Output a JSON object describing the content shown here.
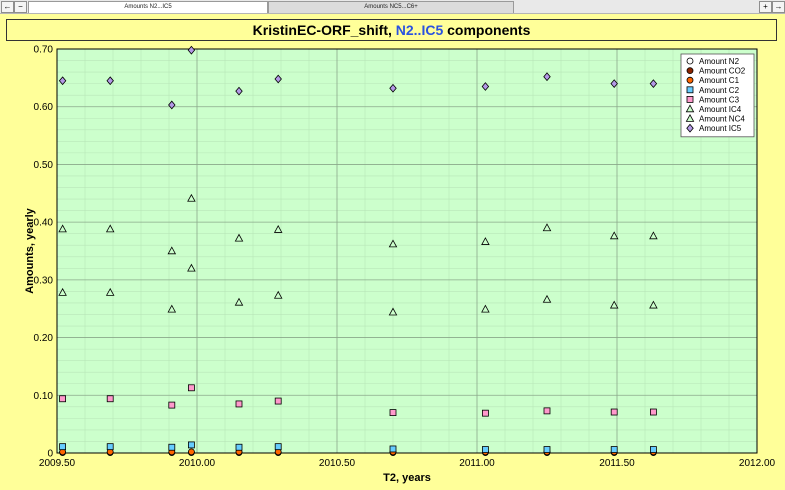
{
  "tabs": {
    "active_label": "Amounts N2...IC5",
    "inactive_label": "Amounts NC5...C6+",
    "nav_left": "←",
    "nav_minus": "−",
    "nav_plus": "+",
    "nav_right": "→"
  },
  "title": {
    "prefix": "KristinEC-ORF_shift, ",
    "highlight": "N2..IC5",
    "suffix": " components"
  },
  "colors": {
    "panel_bg": "#ffff99",
    "plot_bg": "#ccffcc",
    "title_highlight": "#2952e0"
  },
  "chart_data": {
    "type": "scatter",
    "xlabel": "T2, years",
    "ylabel": "Amounts, yearly",
    "xlim": [
      2009.5,
      2012.0
    ],
    "ylim": [
      0.0,
      0.7
    ],
    "x_ticks": [
      "2009.50",
      "2010.00",
      "2010.50",
      "2011.00",
      "2011.50",
      "2012.00"
    ],
    "y_ticks": [
      "0",
      "0.10",
      "0.20",
      "0.30",
      "0.40",
      "0.50",
      "0.60",
      "0.70"
    ],
    "grid": true,
    "legend_position": "top-right",
    "x": [
      2009.52,
      2009.69,
      2009.91,
      2009.98,
      2010.15,
      2010.29,
      2010.7,
      2011.03,
      2011.25,
      2011.49,
      2011.63
    ],
    "series": [
      {
        "name": "Amount N2",
        "marker": "circle",
        "fill": "#ffffff",
        "values": [
          0.001,
          0.001,
          0.001,
          0.001,
          0.001,
          0.001,
          0.001,
          0.001,
          0.001,
          0.001,
          0.001
        ]
      },
      {
        "name": "Amount CO2",
        "marker": "circle",
        "fill": "#8b2500",
        "values": [
          0.001,
          0.001,
          0.001,
          0.001,
          0.001,
          0.001,
          0.001,
          0.001,
          0.001,
          0.001,
          0.001
        ]
      },
      {
        "name": "Amount C1",
        "marker": "circle",
        "fill": "#ff6600",
        "values": [
          0.002,
          0.002,
          0.002,
          0.002,
          0.002,
          0.002,
          0.002,
          0.002,
          0.002,
          0.002,
          0.002
        ]
      },
      {
        "name": "Amount C2",
        "marker": "square",
        "fill": "#66ccff",
        "values": [
          0.011,
          0.011,
          0.01,
          0.014,
          0.01,
          0.011,
          0.007,
          0.006,
          0.006,
          0.006,
          0.006
        ]
      },
      {
        "name": "Amount C3",
        "marker": "square",
        "fill": "#ff99cc",
        "values": [
          0.094,
          0.094,
          0.083,
          0.113,
          0.085,
          0.09,
          0.07,
          0.069,
          0.073,
          0.071,
          0.071
        ]
      },
      {
        "name": "Amount IC4",
        "marker": "triangle",
        "fill": "#ccffcc",
        "values": [
          0.278,
          0.278,
          0.249,
          0.32,
          0.261,
          0.273,
          0.244,
          0.249,
          0.266,
          0.256,
          0.256
        ]
      },
      {
        "name": "Amount NC4",
        "marker": "triangle",
        "fill": "#ccffcc",
        "values": [
          0.388,
          0.388,
          0.35,
          0.441,
          0.372,
          0.387,
          0.362,
          0.366,
          0.39,
          0.376,
          0.376
        ]
      },
      {
        "name": "Amount IC5",
        "marker": "diamond",
        "fill": "#b399e6",
        "values": [
          0.645,
          0.645,
          0.603,
          0.698,
          0.627,
          0.648,
          0.632,
          0.635,
          0.652,
          0.64,
          0.64
        ]
      }
    ]
  }
}
